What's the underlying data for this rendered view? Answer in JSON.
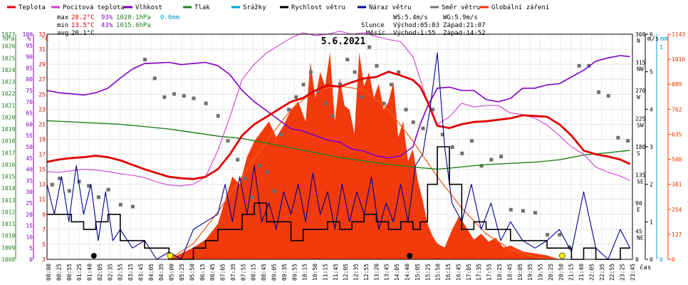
{
  "chart_data": {
    "type": "line",
    "title": "5.6.2021",
    "legend": [
      {
        "name": "Teplota",
        "color": "#e00000"
      },
      {
        "name": "Pocitová teplota",
        "color": "#d040d0"
      },
      {
        "name": "Vlhkost",
        "color": "#8000c0"
      },
      {
        "name": "Tlak",
        "color": "#208020"
      },
      {
        "name": "Srážky",
        "color": "#00a0d0"
      },
      {
        "name": "Rychlost větru",
        "color": "#000000"
      },
      {
        "name": "Náraz větru",
        "color": "#000090"
      },
      {
        "name": "Směr větru",
        "color": "#707070"
      },
      {
        "name": "Globální záření",
        "color": "#f03000"
      }
    ],
    "stats": {
      "max_label": "max",
      "min_label": "min",
      "avg_label": "avg",
      "max_temp": "28.2°C",
      "max_hum": "93%",
      "max_press": "1020.1hPa",
      "max_rain": "0.0mm",
      "min_temp": "13.5°C",
      "min_hum": "43%",
      "min_press": "1015.6hPa",
      "avg_temp": "20.1°C"
    },
    "sun_moon": {
      "ws": "WS:5.4m/s",
      "wg": "WG:5.9m/s",
      "sun_label": "Slunce",
      "sunrise": "Východ:05:03",
      "sunset": "Západ:21:07",
      "moon_label": "Měsíc",
      "moonrise": "Východ:1:55",
      "moonset": "Západ:14:52"
    },
    "axes": {
      "hpa_unit": "hPa",
      "pct_unit": "%",
      "temp_unit": "°C",
      "wind_unit": "m/s",
      "rain_unit": "mm",
      "x_unit": "čas",
      "hpa_ticks": [
        "1027",
        "1026",
        "1025",
        "1024",
        "1023",
        "1022",
        "1021",
        "1020",
        "1019",
        "1018",
        "1017",
        "1016",
        "1015",
        "1014",
        "1013",
        "1012",
        "1011",
        "1010",
        "1009",
        "1008"
      ],
      "pct_ticks": [
        "100",
        "95",
        "90",
        "85",
        "80",
        "75",
        "70",
        "65",
        "60",
        "55",
        "50",
        "45",
        "40",
        "35",
        "30",
        "25",
        "20",
        "15",
        "10",
        "5",
        "0"
      ],
      "temp_ticks": [
        "33",
        "31",
        "29",
        "27",
        "25",
        "23",
        "21",
        "19",
        "17",
        "15",
        "13",
        "11",
        "9",
        "7",
        "5",
        "3"
      ],
      "dir_ticks": [
        "360",
        "315",
        "270",
        "225",
        "180",
        "135",
        "90",
        "45",
        "0"
      ],
      "dir_letters": [
        "N",
        "NW",
        "W",
        "SW",
        "S",
        "SE",
        "E",
        "NE",
        ""
      ],
      "wind_ticks": [
        "6",
        "5",
        "4",
        "3",
        "2",
        "1",
        "0"
      ],
      "rain_ticks": [
        "1",
        "0"
      ],
      "solar_ticks": [
        "1143",
        "1016",
        "889",
        "762",
        "635",
        "508",
        "381",
        "254",
        "127",
        "0"
      ],
      "x_labels": [
        "00:00",
        "00:25",
        "00:55",
        "01:25",
        "01:40",
        "02:05",
        "02:35",
        "02:55",
        "03:15",
        "03:45",
        "04:05",
        "04:35",
        "05:00",
        "05:25",
        "05:50",
        "06:15",
        "06:45",
        "07:05",
        "07:35",
        "07:55",
        "08:15",
        "08:45",
        "09:05",
        "09:35",
        "09:55",
        "10:15",
        "10:50",
        "11:15",
        "11:45",
        "12:05",
        "12:35",
        "12:55",
        "13:20",
        "13:45",
        "14:05",
        "14:40",
        "15:05",
        "15:25",
        "15:50",
        "16:15",
        "16:45",
        "17:05",
        "17:35",
        "17:55",
        "18:25",
        "18:45",
        "19:05",
        "19:35",
        "19:55",
        "20:25",
        "20:50",
        "21:15",
        "21:40",
        "22:05",
        "22:35",
        "22:55",
        "23:25",
        "23:45"
      ]
    },
    "x_range_hours": [
      0,
      24
    ],
    "temperature_C": {
      "x": [
        0,
        0.5,
        1,
        1.5,
        2,
        2.5,
        3,
        3.5,
        4,
        4.5,
        5,
        5.5,
        6,
        6.5,
        7,
        7.5,
        8,
        8.5,
        9,
        9.5,
        10,
        10.5,
        11,
        11.5,
        12,
        12.5,
        13,
        13.5,
        14,
        14.5,
        15,
        15.3,
        15.6,
        16,
        16.5,
        17,
        17.5,
        18,
        18.5,
        19,
        19.5,
        20,
        20.5,
        21,
        21.5,
        22,
        22.5,
        23,
        23.5,
        23.9
      ],
      "y": [
        16.0,
        16.3,
        16.5,
        16.6,
        16.8,
        16.6,
        16.2,
        15.6,
        15.0,
        14.5,
        14.0,
        13.8,
        13.7,
        14.0,
        15.0,
        17.0,
        19.5,
        21.0,
        22.0,
        23.0,
        24.0,
        24.5,
        25.5,
        26.2,
        26.0,
        26.6,
        27.1,
        27.3,
        28.0,
        27.5,
        26.9,
        26.0,
        24.0,
        20.8,
        20.5,
        21.0,
        21.3,
        21.4,
        21.6,
        21.8,
        22.2,
        22.1,
        22.0,
        21.0,
        19.5,
        17.5,
        17.0,
        16.7,
        16.3,
        15.7
      ]
    },
    "feels_like_C": {
      "x": [
        0,
        0.5,
        1,
        1.5,
        2,
        2.5,
        3,
        3.5,
        4,
        4.5,
        5,
        5.5,
        6,
        6.5,
        7,
        7.5,
        8,
        8.5,
        9,
        9.5,
        10,
        10.5,
        11,
        11.5,
        12,
        12.5,
        13,
        13.5,
        14,
        14.5,
        15,
        15.3,
        15.6,
        16,
        16.5,
        17,
        17.5,
        18,
        18.5,
        19,
        19.5,
        20,
        20.5,
        21,
        21.5,
        22,
        22.5,
        23,
        23.5,
        23.9
      ],
      "y": [
        14.7,
        14.6,
        14.8,
        15.0,
        14.9,
        14.7,
        14.4,
        14.2,
        13.9,
        13.3,
        12.9,
        12.8,
        13.0,
        14.0,
        17.5,
        22.0,
        27.0,
        29.0,
        30.5,
        31.5,
        32.5,
        33.2,
        32.8,
        33.0,
        33.4,
        33.0,
        33.2,
        32.7,
        32.3,
        32.0,
        30.0,
        27.0,
        24.0,
        21.0,
        22.0,
        23.8,
        23.3,
        23.5,
        23.5,
        22.5,
        22.3,
        21.8,
        20.9,
        19.5,
        18.0,
        17.0,
        15.3,
        14.6,
        14.1,
        13.5
      ]
    },
    "humidity_pct": {
      "x": [
        0,
        0.5,
        1,
        1.5,
        2,
        2.5,
        3,
        3.5,
        4,
        4.5,
        5,
        5.5,
        6,
        6.5,
        7,
        7.5,
        8,
        8.5,
        9,
        9.5,
        10,
        10.5,
        11,
        11.5,
        12,
        12.5,
        13,
        13.5,
        14,
        14.5,
        15,
        15.3,
        15.6,
        16,
        16.5,
        17,
        17.5,
        18,
        18.5,
        19,
        19.5,
        20,
        20.5,
        21,
        21.5,
        22,
        22.5,
        23,
        23.5,
        23.9
      ],
      "y": [
        75.0,
        74.0,
        73.5,
        73.0,
        74.0,
        76.0,
        80.5,
        84.5,
        87.0,
        87.2,
        87.5,
        86.5,
        87.0,
        87.5,
        86.0,
        82.0,
        75.0,
        70.0,
        66.0,
        62.0,
        58.0,
        57.0,
        55.0,
        53.0,
        52.0,
        49.0,
        48.0,
        46.0,
        45.0,
        46.0,
        50.0,
        60.0,
        68.0,
        76.0,
        76.5,
        75.0,
        75.0,
        71.0,
        70.0,
        71.5,
        76.0,
        76.0,
        77.5,
        78.0,
        81.0,
        84.0,
        88.0,
        89.5,
        90.5,
        90.0
      ]
    },
    "pressure_hPa": {
      "x": [
        0,
        1,
        2,
        3,
        4,
        5,
        6,
        7,
        8,
        9,
        10,
        11,
        12,
        13,
        14,
        15,
        16,
        17,
        18,
        19,
        20,
        21,
        22,
        23,
        23.9
      ],
      "y": [
        1019.7,
        1019.6,
        1019.5,
        1019.4,
        1019.2,
        1019.0,
        1018.7,
        1018.4,
        1018.2,
        1017.8,
        1017.4,
        1017.0,
        1016.6,
        1016.3,
        1016.0,
        1015.8,
        1015.6,
        1015.8,
        1016.0,
        1016.1,
        1016.2,
        1016.4,
        1016.8,
        1017.0,
        1017.2
      ]
    },
    "wind_ms": {
      "x": [
        0,
        0.5,
        1,
        1.5,
        2,
        2.5,
        3,
        3.5,
        4,
        4.5,
        5,
        5.5,
        6,
        6.5,
        7,
        7.5,
        8,
        8.5,
        9,
        9.5,
        10,
        10.5,
        11,
        11.5,
        12,
        12.5,
        13,
        13.5,
        14,
        14.5,
        15,
        15.3,
        15.6,
        16,
        16.5,
        17,
        17.5,
        18,
        18.5,
        19,
        19.5,
        20,
        20.5,
        21,
        21.5,
        22,
        22.5,
        23,
        23.5,
        23.9
      ],
      "y": [
        1.2,
        1.2,
        1.0,
        0.8,
        1.0,
        1.2,
        0.5,
        0.5,
        0.3,
        0.3,
        0.0,
        0.0,
        0.3,
        0.5,
        0.8,
        0.8,
        1.2,
        1.5,
        1.0,
        1.0,
        0.5,
        0.8,
        0.8,
        1.0,
        0.8,
        1.0,
        1.2,
        1.0,
        0.8,
        1.0,
        0.8,
        1.0,
        2.0,
        3.0,
        2.0,
        0.8,
        1.0,
        0.8,
        0.8,
        0.5,
        0.5,
        0.5,
        0.3,
        0.3,
        0.0,
        0.3,
        0.0,
        0.0,
        0.3,
        0.3
      ]
    },
    "gust_ms": {
      "x": [
        0,
        0.3,
        0.6,
        0.9,
        1.2,
        1.5,
        1.8,
        2.1,
        2.4,
        2.7,
        3.0,
        3.5,
        4.0,
        4.5,
        5.0,
        5.5,
        6.0,
        6.5,
        7.0,
        7.3,
        7.6,
        7.9,
        8.2,
        8.5,
        8.8,
        9.1,
        9.4,
        9.7,
        10.0,
        10.3,
        10.6,
        10.9,
        11.2,
        11.5,
        11.8,
        12.1,
        12.4,
        12.7,
        13.0,
        13.3,
        13.6,
        13.9,
        14.2,
        14.5,
        14.8,
        15.1,
        15.4,
        15.7,
        16.0,
        16.3,
        16.6,
        17.0,
        17.4,
        17.8,
        18.2,
        18.6,
        19.0,
        19.5,
        20.0,
        20.5,
        21.0,
        21.5,
        22.0,
        22.5,
        23.0,
        23.5,
        23.9
      ],
      "y": [
        2.0,
        1.2,
        2.2,
        1.0,
        2.5,
        1.2,
        2.0,
        0.5,
        1.8,
        0.5,
        0.8,
        0.3,
        0.5,
        0.0,
        0.2,
        0.0,
        0.8,
        1.0,
        1.2,
        2.0,
        1.0,
        2.2,
        1.2,
        2.5,
        1.0,
        1.5,
        0.8,
        1.8,
        1.2,
        2.0,
        1.0,
        2.3,
        1.2,
        1.8,
        0.8,
        2.0,
        1.0,
        1.8,
        1.2,
        2.2,
        0.8,
        1.5,
        1.0,
        2.0,
        1.0,
        2.5,
        2.8,
        4.0,
        5.5,
        3.0,
        1.5,
        1.0,
        2.0,
        0.8,
        1.5,
        0.5,
        1.0,
        0.5,
        0.3,
        0.5,
        0.8,
        0.2,
        1.8,
        0.3,
        0.0,
        0.8,
        0.3
      ]
    },
    "wind_dir_deg": {
      "x": [
        0.2,
        0.5,
        0.9,
        1.3,
        1.7,
        2.1,
        2.5,
        3.0,
        3.5,
        4.0,
        4.4,
        4.8,
        5.2,
        5.6,
        6.0,
        6.5,
        7.0,
        7.4,
        7.8,
        8.1,
        8.4,
        8.7,
        9.0,
        9.3,
        9.6,
        9.9,
        10.2,
        10.5,
        10.8,
        11.1,
        11.4,
        11.7,
        12.0,
        12.3,
        12.6,
        12.9,
        13.2,
        13.5,
        13.8,
        14.1,
        14.4,
        14.7,
        15.0,
        15.4,
        15.8,
        16.2,
        16.6,
        17.0,
        17.4,
        17.8,
        18.2,
        18.6,
        19.0,
        19.5,
        20.0,
        20.5,
        21.0,
        21.4,
        21.8,
        22.2,
        22.6,
        23.0,
        23.4,
        23.8
      ],
      "y": [
        120,
        130,
        110,
        125,
        118,
        100,
        112,
        88,
        85,
        320,
        290,
        260,
        265,
        262,
        258,
        250,
        230,
        190,
        160,
        130,
        100,
        150,
        140,
        110,
        200,
        240,
        260,
        280,
        300,
        270,
        250,
        230,
        280,
        320,
        300,
        260,
        340,
        310,
        250,
        280,
        300,
        240,
        220,
        210,
        240,
        200,
        180,
        170,
        190,
        150,
        160,
        165,
        80,
        78,
        75,
        40,
        40,
        20,
        310,
        310,
        268,
        262,
        195,
        190
      ]
    },
    "solar_Wm2": {
      "x": [
        5.0,
        5.5,
        6.0,
        6.5,
        7.0,
        7.3,
        7.6,
        7.9,
        8.2,
        8.5,
        8.8,
        9.1,
        9.4,
        9.7,
        10.0,
        10.3,
        10.6,
        10.8,
        11.0,
        11.2,
        11.4,
        11.6,
        11.8,
        12.0,
        12.2,
        12.4,
        12.6,
        12.8,
        13.0,
        13.2,
        13.4,
        13.6,
        13.8,
        14.0,
        14.2,
        14.4,
        14.6,
        14.8,
        15.0,
        15.2,
        15.4,
        15.6,
        15.8,
        16.0,
        16.3,
        16.6,
        16.9,
        17.2,
        17.5,
        17.8,
        18.1,
        18.4,
        18.7,
        19.0,
        19.5,
        20.0,
        20.5,
        21.0
      ],
      "y": [
        0,
        30,
        60,
        100,
        180,
        300,
        420,
        380,
        520,
        600,
        650,
        700,
        620,
        680,
        760,
        800,
        700,
        1000,
        820,
        950,
        880,
        1050,
        700,
        920,
        780,
        760,
        640,
        1050,
        880,
        950,
        820,
        890,
        760,
        800,
        900,
        620,
        700,
        500,
        560,
        400,
        300,
        180,
        120,
        80,
        60,
        150,
        220,
        160,
        100,
        130,
        90,
        110,
        60,
        70,
        40,
        30,
        20,
        0
      ]
    },
    "clear_sky_Wm2": {
      "x": [
        5.0,
        6.0,
        7.0,
        8.0,
        9.0,
        10.0,
        11.0,
        12.0,
        13.0,
        14.0,
        15.0,
        16.0,
        17.0,
        18.0,
        19.0,
        20.0,
        21.0
      ],
      "y": [
        0,
        80,
        240,
        420,
        600,
        760,
        860,
        880,
        860,
        760,
        600,
        420,
        260,
        130,
        50,
        10,
        0
      ]
    },
    "sun_markers_hours": [
      5.05,
      21.12
    ],
    "moon_markers_hours": [
      1.92,
      14.87
    ]
  }
}
